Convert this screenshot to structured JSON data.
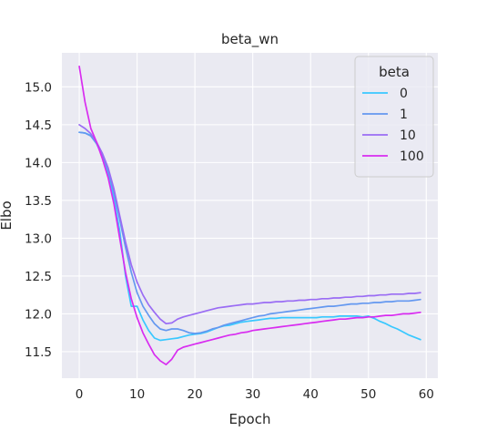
{
  "chart_data": {
    "type": "line",
    "title": "beta_wn",
    "xlabel": "Epoch",
    "ylabel": "Elbo",
    "xlim": [
      -3,
      62
    ],
    "ylim": [
      11.15,
      15.45
    ],
    "xticks": [
      0,
      10,
      20,
      30,
      40,
      50,
      60
    ],
    "yticks": [
      11.5,
      12.0,
      12.5,
      13.0,
      13.5,
      14.0,
      14.5,
      15.0
    ],
    "ytick_labels": [
      "11.5",
      "12.0",
      "12.5",
      "13.0",
      "13.5",
      "14.0",
      "14.5",
      "15.0"
    ],
    "grid": true,
    "background": "#eaeaf2",
    "legend": {
      "title": "beta",
      "placement": "top-right"
    },
    "series": [
      {
        "name": "0",
        "color": "#39c8ff",
        "x": [
          0,
          1,
          2,
          3,
          4,
          5,
          6,
          7,
          8,
          9,
          10,
          11,
          12,
          13,
          14,
          15,
          16,
          17,
          18,
          19,
          20,
          21,
          22,
          23,
          24,
          25,
          26,
          27,
          28,
          29,
          30,
          31,
          32,
          33,
          34,
          35,
          36,
          37,
          38,
          39,
          40,
          41,
          42,
          43,
          44,
          45,
          46,
          47,
          48,
          49,
          50,
          51,
          52,
          53,
          54,
          55,
          56,
          57,
          58,
          59
        ],
        "values": [
          14.4,
          14.39,
          14.36,
          14.25,
          14.08,
          13.85,
          13.52,
          13.1,
          12.5,
          12.1,
          12.1,
          11.92,
          11.78,
          11.68,
          11.65,
          11.66,
          11.67,
          11.68,
          11.7,
          11.72,
          11.73,
          11.74,
          11.76,
          11.79,
          11.82,
          11.84,
          11.85,
          11.87,
          11.89,
          11.9,
          11.91,
          11.92,
          11.93,
          11.94,
          11.94,
          11.95,
          11.95,
          11.95,
          11.95,
          11.95,
          11.95,
          11.95,
          11.96,
          11.96,
          11.96,
          11.97,
          11.97,
          11.97,
          11.97,
          11.96,
          11.97,
          11.94,
          11.9,
          11.87,
          11.83,
          11.8,
          11.76,
          11.72,
          11.69,
          11.66
        ]
      },
      {
        "name": "1",
        "color": "#6498f0",
        "x": [
          0,
          1,
          2,
          3,
          4,
          5,
          6,
          7,
          8,
          9,
          10,
          11,
          12,
          13,
          14,
          15,
          16,
          17,
          18,
          19,
          20,
          21,
          22,
          23,
          24,
          25,
          26,
          27,
          28,
          29,
          30,
          31,
          32,
          33,
          34,
          35,
          36,
          37,
          38,
          39,
          40,
          41,
          42,
          43,
          44,
          45,
          46,
          47,
          48,
          49,
          50,
          51,
          52,
          53,
          54,
          55,
          56,
          57,
          58,
          59
        ],
        "values": [
          14.4,
          14.39,
          14.35,
          14.25,
          14.1,
          13.9,
          13.6,
          13.25,
          12.88,
          12.55,
          12.28,
          12.1,
          11.98,
          11.87,
          11.8,
          11.78,
          11.8,
          11.8,
          11.78,
          11.75,
          11.74,
          11.75,
          11.77,
          11.8,
          11.82,
          11.85,
          11.87,
          11.89,
          11.91,
          11.93,
          11.95,
          11.97,
          11.98,
          12.0,
          12.01,
          12.02,
          12.03,
          12.04,
          12.05,
          12.06,
          12.07,
          12.08,
          12.09,
          12.1,
          12.1,
          12.11,
          12.12,
          12.13,
          12.13,
          12.14,
          12.14,
          12.15,
          12.15,
          12.16,
          12.16,
          12.17,
          12.17,
          12.17,
          12.18,
          12.19
        ]
      },
      {
        "name": "10",
        "color": "#9a6cf4",
        "x": [
          0,
          1,
          2,
          3,
          4,
          5,
          6,
          7,
          8,
          9,
          10,
          11,
          12,
          13,
          14,
          15,
          16,
          17,
          18,
          19,
          20,
          21,
          22,
          23,
          24,
          25,
          26,
          27,
          28,
          29,
          30,
          31,
          32,
          33,
          34,
          35,
          36,
          37,
          38,
          39,
          40,
          41,
          42,
          43,
          44,
          45,
          46,
          47,
          48,
          49,
          50,
          51,
          52,
          53,
          54,
          55,
          56,
          57,
          58,
          59
        ],
        "values": [
          14.5,
          14.45,
          14.38,
          14.27,
          14.12,
          13.93,
          13.65,
          13.3,
          12.95,
          12.65,
          12.42,
          12.25,
          12.12,
          12.02,
          11.93,
          11.87,
          11.88,
          11.93,
          11.96,
          11.98,
          12.0,
          12.02,
          12.04,
          12.06,
          12.08,
          12.09,
          12.1,
          12.11,
          12.12,
          12.13,
          12.13,
          12.14,
          12.15,
          12.15,
          12.16,
          12.16,
          12.17,
          12.17,
          12.18,
          12.18,
          12.19,
          12.19,
          12.2,
          12.2,
          12.21,
          12.21,
          12.22,
          12.22,
          12.23,
          12.23,
          12.24,
          12.24,
          12.25,
          12.25,
          12.26,
          12.26,
          12.26,
          12.27,
          12.27,
          12.28
        ]
      },
      {
        "name": "100",
        "color": "#d82cf0",
        "x": [
          0,
          1,
          2,
          3,
          4,
          5,
          6,
          7,
          8,
          9,
          10,
          11,
          12,
          13,
          14,
          15,
          16,
          17,
          18,
          19,
          20,
          21,
          22,
          23,
          24,
          25,
          26,
          27,
          28,
          29,
          30,
          31,
          32,
          33,
          34,
          35,
          36,
          37,
          38,
          39,
          40,
          41,
          42,
          43,
          44,
          45,
          46,
          47,
          48,
          49,
          50,
          51,
          52,
          53,
          54,
          55,
          56,
          57,
          58,
          59
        ],
        "values": [
          15.27,
          14.8,
          14.45,
          14.27,
          14.05,
          13.8,
          13.45,
          13.0,
          12.55,
          12.2,
          11.95,
          11.75,
          11.6,
          11.46,
          11.38,
          11.33,
          11.4,
          11.52,
          11.56,
          11.58,
          11.6,
          11.62,
          11.64,
          11.66,
          11.68,
          11.7,
          11.72,
          11.73,
          11.75,
          11.76,
          11.78,
          11.79,
          11.8,
          11.81,
          11.82,
          11.83,
          11.84,
          11.85,
          11.86,
          11.87,
          11.88,
          11.89,
          11.9,
          11.91,
          11.92,
          11.93,
          11.93,
          11.94,
          11.95,
          11.95,
          11.96,
          11.96,
          11.97,
          11.98,
          11.98,
          11.99,
          12.0,
          12.0,
          12.01,
          12.02
        ]
      }
    ]
  }
}
